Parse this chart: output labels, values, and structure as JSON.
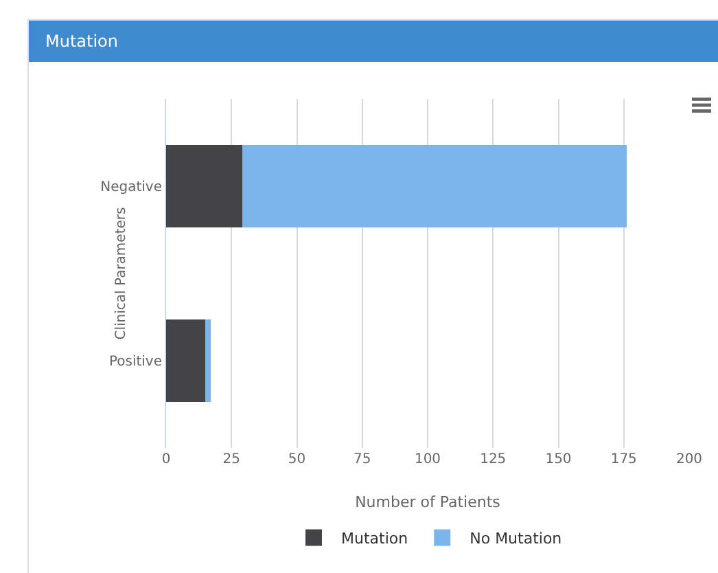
{
  "chart_data": {
    "type": "bar",
    "title": "Mutation",
    "orientation": "horizontal",
    "stacked": true,
    "categories": [
      "Negative",
      "Positive"
    ],
    "series": [
      {
        "name": "Mutation",
        "color": "#434348",
        "values": [
          29,
          15
        ]
      },
      {
        "name": "No Mutation",
        "color": "#7cb5ec",
        "values": [
          147,
          2
        ]
      }
    ],
    "xlim": [
      0,
      200
    ],
    "xticks": [
      0,
      25,
      50,
      75,
      100,
      125,
      150,
      175,
      200
    ],
    "xlabel": "Number of Patients",
    "ylabel": "Clinical Parameters",
    "grid": "x",
    "legend": "bottom"
  }
}
